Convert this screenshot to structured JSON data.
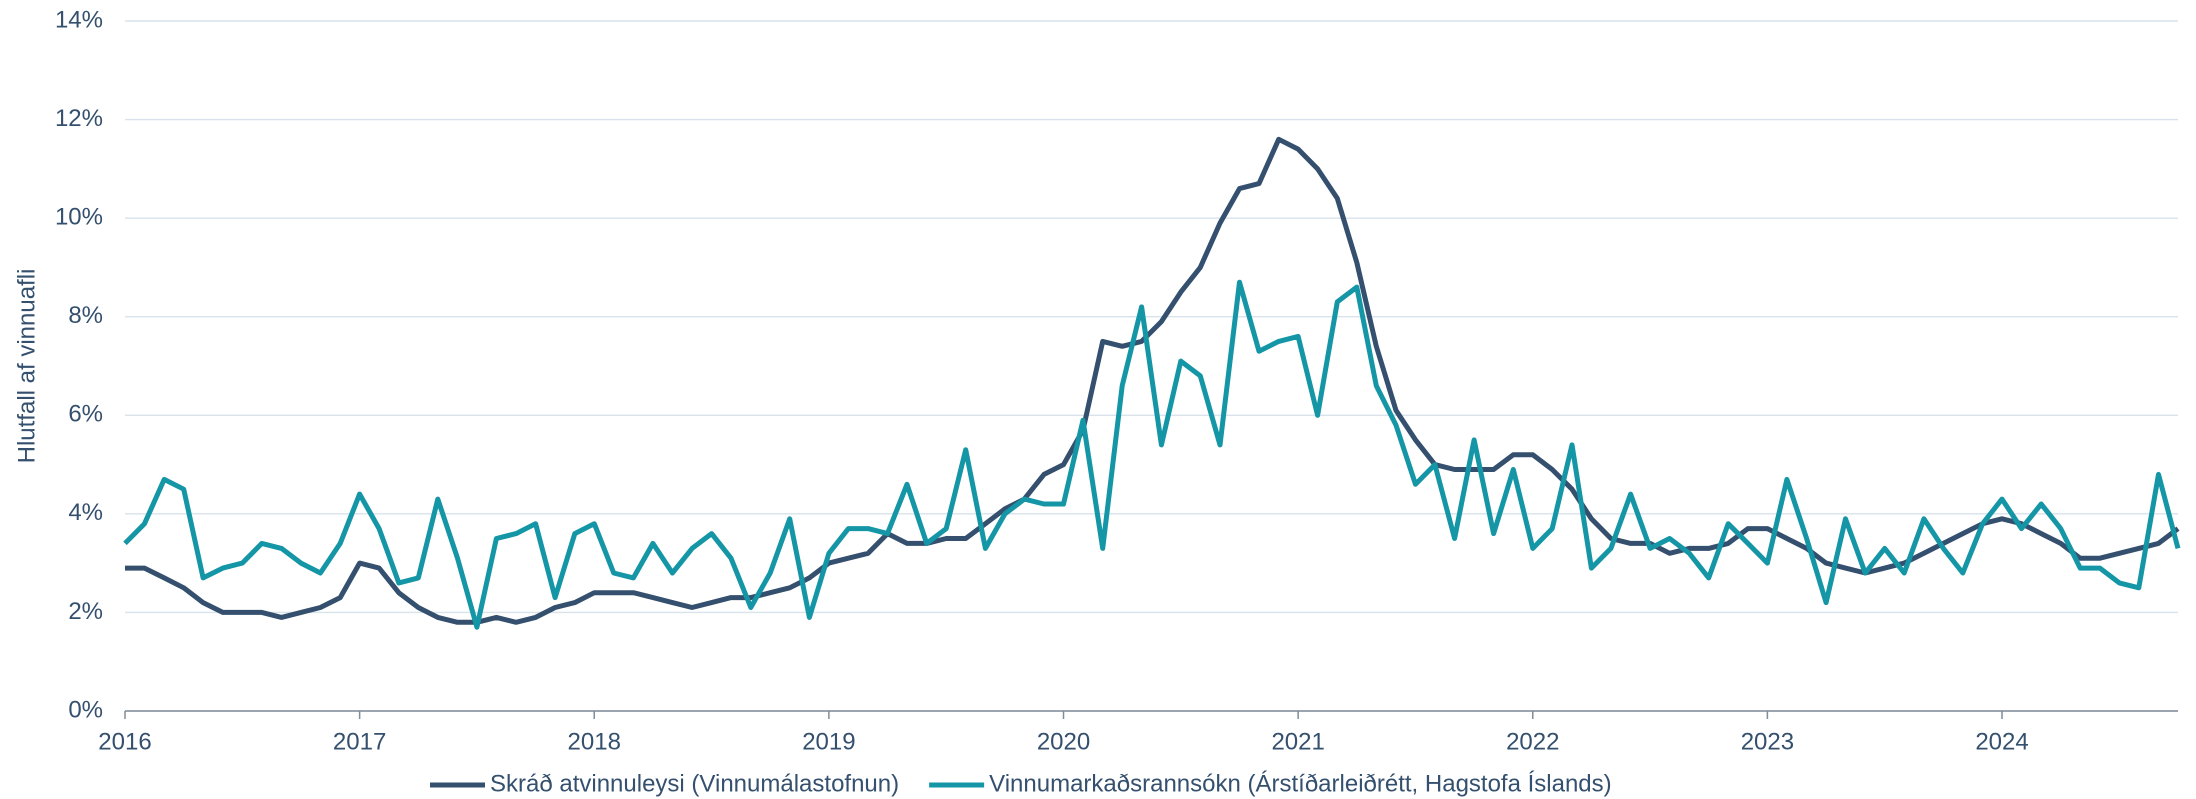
{
  "chart_data": {
    "type": "line",
    "y_label": "Hlutfall af vinnuafli",
    "x": [
      2016,
      2016.083,
      2016.167,
      2016.25,
      2016.333,
      2016.417,
      2016.5,
      2016.583,
      2016.667,
      2016.75,
      2016.833,
      2016.917,
      2017,
      2017.083,
      2017.167,
      2017.25,
      2017.333,
      2017.417,
      2017.5,
      2017.583,
      2017.667,
      2017.75,
      2017.833,
      2017.917,
      2018,
      2018.083,
      2018.167,
      2018.25,
      2018.333,
      2018.417,
      2018.5,
      2018.583,
      2018.667,
      2018.75,
      2018.833,
      2018.917,
      2019,
      2019.083,
      2019.167,
      2019.25,
      2019.333,
      2019.417,
      2019.5,
      2019.583,
      2019.667,
      2019.75,
      2019.833,
      2019.917,
      2020,
      2020.083,
      2020.167,
      2020.25,
      2020.333,
      2020.417,
      2020.5,
      2020.583,
      2020.667,
      2020.75,
      2020.833,
      2020.917,
      2021,
      2021.083,
      2021.167,
      2021.25,
      2021.333,
      2021.417,
      2021.5,
      2021.583,
      2021.667,
      2021.75,
      2021.833,
      2021.917,
      2022,
      2022.083,
      2022.167,
      2022.25,
      2022.333,
      2022.417,
      2022.5,
      2022.583,
      2022.667,
      2022.75,
      2022.833,
      2022.917,
      2023,
      2023.083,
      2023.167,
      2023.25,
      2023.333,
      2023.417,
      2023.5,
      2023.583,
      2023.667,
      2023.75,
      2023.833,
      2023.917,
      2024,
      2024.083,
      2024.167,
      2024.25,
      2024.333,
      2024.417,
      2024.5,
      2024.583,
      2024.667,
      2024.75
    ],
    "series": [
      {
        "name": "Skráð atvinnuleysi (Vinnumálastofnun)",
        "color": "#34506e",
        "values": [
          2.9,
          2.9,
          2.7,
          2.5,
          2.2,
          2.0,
          2.0,
          2.0,
          1.9,
          2.0,
          2.1,
          2.3,
          3.0,
          2.9,
          2.4,
          2.1,
          1.9,
          1.8,
          1.8,
          1.9,
          1.8,
          1.9,
          2.1,
          2.2,
          2.4,
          2.4,
          2.4,
          2.3,
          2.2,
          2.1,
          2.2,
          2.3,
          2.3,
          2.4,
          2.5,
          2.7,
          3.0,
          3.1,
          3.2,
          3.6,
          3.4,
          3.4,
          3.5,
          3.5,
          3.8,
          4.1,
          4.3,
          4.8,
          5.0,
          5.7,
          7.5,
          7.4,
          7.5,
          7.9,
          8.5,
          9.0,
          9.9,
          10.6,
          10.7,
          11.6,
          11.4,
          11.0,
          10.4,
          9.1,
          7.4,
          6.1,
          5.5,
          5.0,
          4.9,
          4.9,
          4.9,
          5.2,
          5.2,
          4.9,
          4.5,
          3.9,
          3.5,
          3.4,
          3.4,
          3.2,
          3.3,
          3.3,
          3.4,
          3.7,
          3.7,
          3.5,
          3.3,
          3.0,
          2.9,
          2.8,
          2.9,
          3.0,
          3.2,
          3.4,
          3.6,
          3.8,
          3.9,
          3.8,
          3.6,
          3.4,
          3.1,
          3.1,
          3.2,
          3.3,
          3.4,
          3.7
        ]
      },
      {
        "name": "Vinnumarkaðsrannsókn (Árstíðarleiðrétt, Hagstofa Íslands)",
        "color": "#1596a6",
        "values": [
          3.4,
          3.8,
          4.7,
          4.5,
          2.7,
          2.9,
          3.0,
          3.4,
          3.3,
          3.0,
          2.8,
          3.4,
          4.4,
          3.7,
          2.6,
          2.7,
          4.3,
          3.1,
          1.7,
          3.5,
          3.6,
          3.8,
          2.3,
          3.6,
          3.8,
          2.8,
          2.7,
          3.4,
          2.8,
          3.3,
          3.6,
          3.1,
          2.1,
          2.8,
          3.9,
          1.9,
          3.2,
          3.7,
          3.7,
          3.6,
          4.6,
          3.4,
          3.7,
          5.3,
          3.3,
          4.0,
          4.3,
          4.2,
          4.2,
          5.9,
          3.3,
          6.6,
          8.2,
          5.4,
          7.1,
          6.8,
          5.4,
          8.7,
          7.3,
          7.5,
          7.6,
          6.0,
          8.3,
          8.6,
          6.6,
          5.8,
          4.6,
          5.0,
          3.5,
          5.5,
          3.6,
          4.9,
          3.3,
          3.7,
          5.4,
          2.9,
          3.3,
          4.4,
          3.3,
          3.5,
          3.2,
          2.7,
          3.8,
          3.4,
          3.0,
          4.7,
          3.5,
          2.2,
          3.9,
          2.8,
          3.3,
          2.8,
          3.9,
          3.3,
          2.8,
          3.8,
          4.3,
          3.7,
          4.2,
          3.7,
          2.9,
          2.9,
          2.6,
          2.5,
          4.8,
          3.3
        ]
      }
    ],
    "xlim": [
      2016,
      2024.75
    ],
    "xticks": [
      2016,
      2017,
      2018,
      2019,
      2020,
      2021,
      2022,
      2023,
      2024
    ],
    "ylim": [
      0,
      14
    ],
    "yticks": [
      {
        "value": 0,
        "label": "0%"
      },
      {
        "value": 2,
        "label": "2%"
      },
      {
        "value": 4,
        "label": "4%"
      },
      {
        "value": 6,
        "label": "6%"
      },
      {
        "value": 8,
        "label": "8%"
      },
      {
        "value": 10,
        "label": "10%"
      },
      {
        "value": 12,
        "label": "12%"
      },
      {
        "value": 14,
        "label": "14%"
      }
    ],
    "grid": true
  }
}
